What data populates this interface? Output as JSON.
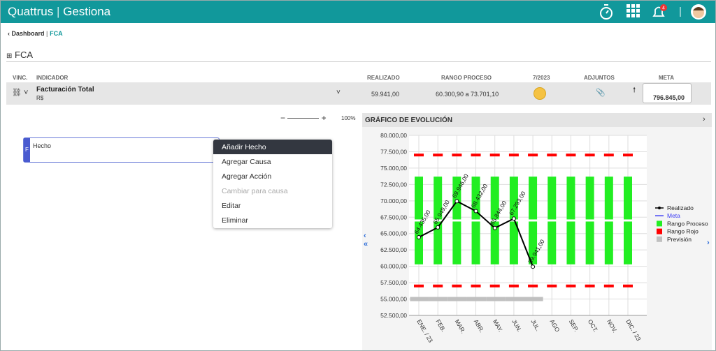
{
  "header": {
    "brand": "Quattrus",
    "product": "Gestiona",
    "notifications": "4"
  },
  "breadcrumb": [
    "Dashboard",
    "FCA"
  ],
  "page_title": "FCA",
  "table": {
    "columns": [
      "VINC.",
      "INDICADOR",
      "REALIZADO",
      "RANGO PROCESO",
      "7/2023",
      "ADJUNTOS",
      "META"
    ],
    "row": {
      "name": "Facturación Total",
      "unit": "R$",
      "realizado": "59.941,00",
      "rango": "60.300,90 a 73.701,10",
      "meta": "796.845,00"
    }
  },
  "zoom": "100%",
  "fca": {
    "badge": "F",
    "label": "Hecho",
    "menu": [
      "Añadir Hecho",
      "Agregar Causa",
      "Agregar Acción",
      "Cambiar para causa",
      "Editar",
      "Eliminar"
    ]
  },
  "chart_data": {
    "type": "bar",
    "title": "GRÁFICO DE EVOLUCIÓN",
    "categories": [
      "ENE. / 23",
      "FEB.",
      "MAR.",
      "ABR.",
      "MAY.",
      "JUN.",
      "JUL.",
      "AGO",
      "SEP.",
      "OCT.",
      "NOV.",
      "DIC. / 23"
    ],
    "ylim": [
      52500,
      80000
    ],
    "yticks": [
      {
        "value": 52500,
        "label": "52.500,00"
      },
      {
        "value": 55000,
        "label": "55.000,00"
      },
      {
        "value": 57500,
        "label": "57.500,00"
      },
      {
        "value": 60000,
        "label": "60.000,00"
      },
      {
        "value": 62500,
        "label": "62.500,00"
      },
      {
        "value": 65000,
        "label": "65.000,00"
      },
      {
        "value": 67500,
        "label": "67.500,00"
      },
      {
        "value": 70000,
        "label": "70.000,00"
      },
      {
        "value": 72500,
        "label": "72.500,00"
      },
      {
        "value": 75000,
        "label": "75.000,00"
      },
      {
        "value": 77500,
        "label": "77.500,00"
      },
      {
        "value": 80000,
        "label": "80.000,00"
      }
    ],
    "grid": true,
    "series": [
      {
        "name": "Realizado",
        "color": "#000000",
        "values": [
          64435,
          65949,
          69946,
          68432,
          65844,
          67293,
          59941,
          null,
          null,
          null,
          null,
          null
        ],
        "value_labels": [
          "64.435,00",
          "65.949,00",
          "69.946,00",
          "68.432,00",
          "65.844,00",
          "67.293,00",
          "59.941,00",
          null,
          null,
          null,
          null,
          null
        ]
      },
      {
        "name": "Meta",
        "color": "#3b3bf5",
        "mark_color": "#ffffff",
        "values": [
          67000,
          67000,
          67000,
          67000,
          67000,
          67000,
          67000,
          67000,
          67000,
          67000,
          67000,
          67000
        ]
      },
      {
        "name": "Rango Proceso",
        "color": "#22ee22",
        "low": [
          60300.9,
          60300.9,
          60300.9,
          60300.9,
          60300.9,
          60300.9,
          60300.9,
          60300.9,
          60300.9,
          60300.9,
          60300.9,
          60300.9
        ],
        "high": [
          73701.1,
          73701.1,
          73701.1,
          73701.1,
          73701.1,
          73701.1,
          73701.1,
          73701.1,
          73701.1,
          73701.1,
          73701.1,
          73701.1
        ]
      },
      {
        "name": "Rango Rojo",
        "color": "#ff0000",
        "low": [
          57000,
          57000,
          57000,
          57000,
          57000,
          57000,
          57000,
          57000,
          57000,
          57000,
          57000,
          57000
        ],
        "high": [
          77000,
          77000,
          77000,
          77000,
          77000,
          77000,
          77000,
          77000,
          77000,
          77000,
          77000,
          77000
        ]
      },
      {
        "name": "Previsión",
        "color": "#c0c0c0",
        "values": [
          55000,
          55000,
          55000,
          55000,
          55000,
          55000,
          55000,
          null,
          null,
          null,
          null,
          null
        ]
      }
    ]
  }
}
